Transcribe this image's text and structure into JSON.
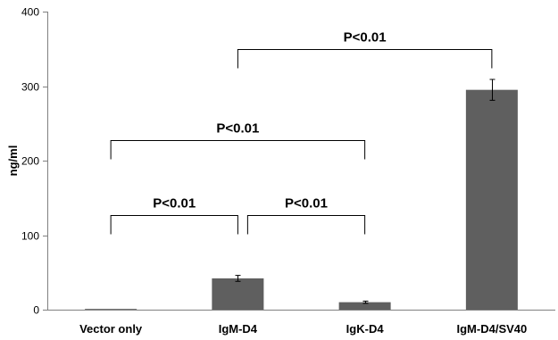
{
  "chart_data": {
    "type": "bar",
    "title": "",
    "xlabel": "",
    "ylabel": "ng/ml",
    "ylim": [
      0,
      400
    ],
    "yticks": [
      0,
      100,
      200,
      300,
      400
    ],
    "grid": false,
    "legend": "none",
    "categories": [
      "Vector only",
      "IgM-D4",
      "IgK-D4",
      "IgM-D4/SV40"
    ],
    "values": [
      1,
      42,
      10,
      295
    ],
    "error": [
      0.5,
      4,
      1.5,
      14
    ],
    "bar_color": "#5f5f5f",
    "significance": [
      {
        "label": "P<0.01",
        "from": 0,
        "to": 1,
        "level": 127
      },
      {
        "label": "P<0.01",
        "from": 1,
        "to": 2,
        "level": 127
      },
      {
        "label": "P<0.01",
        "from": 0,
        "to": 2,
        "level": 227
      },
      {
        "label": "P<0.01",
        "from": 1,
        "to": 3,
        "level": 350
      }
    ]
  }
}
